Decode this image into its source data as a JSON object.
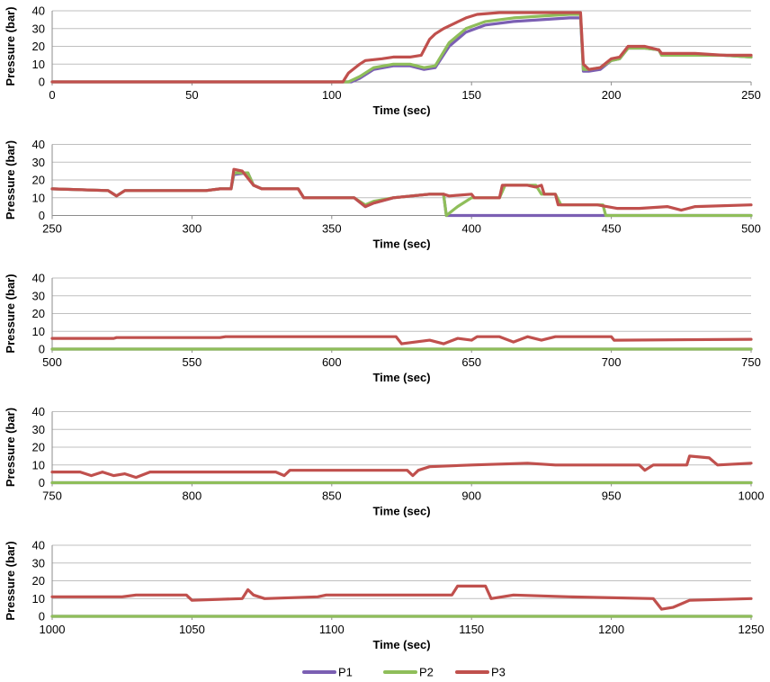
{
  "colors": {
    "P1": "#7b5fb3",
    "P2": "#8fbe5a",
    "P3": "#c0504d",
    "grid": "#bfbfbf"
  },
  "legend": {
    "placement": "bottom",
    "items": [
      "P1",
      "P2",
      "P3"
    ]
  },
  "chart_data": [
    {
      "type": "line",
      "xlabel": "Time (sec)",
      "ylabel": "Pressure (bar)",
      "xlim": [
        0,
        250
      ],
      "ylim": [
        0,
        40
      ],
      "xticks": [
        0,
        50,
        100,
        150,
        200,
        250
      ],
      "yticks": [
        0,
        10,
        20,
        30,
        40
      ],
      "grid": true,
      "series": [
        {
          "name": "P1",
          "x": [
            0,
            107,
            110,
            115,
            122,
            128,
            133,
            137,
            142,
            148,
            155,
            165,
            175,
            185,
            188,
            189,
            190,
            192,
            196,
            200,
            203,
            206,
            212,
            217,
            218,
            230,
            240,
            250
          ],
          "y": [
            0,
            0,
            2,
            7,
            9,
            9,
            7,
            8,
            20,
            28,
            32,
            34,
            35,
            36,
            36,
            36,
            6,
            6,
            7,
            12,
            13,
            19,
            19,
            18,
            15,
            15,
            15,
            14
          ]
        },
        {
          "name": "P2",
          "x": [
            0,
            106,
            110,
            115,
            122,
            128,
            133,
            137,
            142,
            148,
            155,
            165,
            175,
            185,
            188,
            189,
            190,
            192,
            196,
            200,
            203,
            206,
            212,
            217,
            218,
            230,
            240,
            250
          ],
          "y": [
            0,
            0,
            3,
            8,
            10,
            10,
            8,
            9,
            22,
            30,
            34,
            36,
            37,
            38,
            38,
            38,
            7,
            7,
            8,
            12,
            13,
            19,
            19,
            18,
            15,
            15,
            15,
            14
          ]
        },
        {
          "name": "P3",
          "x": [
            0,
            104,
            106,
            110,
            112,
            118,
            122,
            128,
            132,
            135,
            137,
            140,
            144,
            148,
            152,
            160,
            170,
            180,
            188,
            189,
            190,
            192,
            196,
            200,
            203,
            206,
            212,
            217,
            218,
            230,
            240,
            250
          ],
          "y": [
            0,
            0,
            5,
            10,
            12,
            13,
            14,
            14,
            15,
            24,
            27,
            30,
            33,
            36,
            38,
            39,
            39,
            39,
            39,
            39,
            10,
            7,
            8,
            13,
            14,
            20,
            20,
            18,
            16,
            16,
            15,
            15
          ]
        }
      ]
    },
    {
      "type": "line",
      "xlabel": "Time (sec)",
      "ylabel": "Pressure (bar)",
      "xlim": [
        250,
        500
      ],
      "ylim": [
        0,
        40
      ],
      "xticks": [
        250,
        300,
        350,
        400,
        450,
        500
      ],
      "yticks": [
        0,
        10,
        20,
        30,
        40
      ],
      "grid": true,
      "series": [
        {
          "name": "P1",
          "x": [
            250,
            270,
            273,
            276,
            305,
            310,
            314,
            315,
            320,
            322,
            325,
            338,
            340,
            358,
            362,
            365,
            372,
            385,
            390,
            391,
            500
          ],
          "y": [
            15,
            14,
            11,
            14,
            14,
            15,
            15,
            23,
            24,
            17,
            15,
            15,
            10,
            10,
            5,
            7,
            10,
            12,
            12,
            0,
            0
          ]
        },
        {
          "name": "P2",
          "x": [
            250,
            270,
            273,
            276,
            305,
            310,
            314,
            315,
            320,
            322,
            325,
            338,
            340,
            358,
            362,
            365,
            372,
            385,
            390,
            391,
            395,
            400,
            410,
            412,
            420,
            423,
            425,
            430,
            432,
            447,
            448,
            500
          ],
          "y": [
            15,
            14,
            11,
            14,
            14,
            15,
            15,
            24,
            24,
            17,
            15,
            15,
            10,
            10,
            6,
            8,
            10,
            12,
            12,
            0,
            5,
            10,
            10,
            17,
            17,
            17,
            12,
            12,
            6,
            6,
            0,
            0
          ]
        },
        {
          "name": "P3",
          "x": [
            250,
            270,
            273,
            276,
            305,
            310,
            314,
            315,
            318,
            322,
            325,
            338,
            340,
            358,
            362,
            365,
            372,
            385,
            390,
            392,
            400,
            401,
            410,
            411,
            420,
            423,
            425,
            426,
            430,
            431,
            445,
            452,
            460,
            470,
            475,
            480,
            500
          ],
          "y": [
            15,
            14,
            11,
            14,
            14,
            15,
            15,
            26,
            25,
            17,
            15,
            15,
            10,
            10,
            5,
            7,
            10,
            12,
            12,
            11,
            12,
            10,
            10,
            17,
            17,
            16,
            17,
            12,
            12,
            6,
            6,
            4,
            4,
            5,
            3,
            5,
            6
          ]
        }
      ]
    },
    {
      "type": "line",
      "xlabel": "Time (sec)",
      "ylabel": "Pressure (bar)",
      "xlim": [
        500,
        750
      ],
      "ylim": [
        0,
        40
      ],
      "xticks": [
        500,
        550,
        600,
        650,
        700,
        750
      ],
      "yticks": [
        0,
        10,
        20,
        30,
        40
      ],
      "grid": true,
      "series": [
        {
          "name": "P1",
          "x": [
            500,
            750
          ],
          "y": [
            0,
            0
          ]
        },
        {
          "name": "P2",
          "x": [
            500,
            750
          ],
          "y": [
            0,
            0
          ]
        },
        {
          "name": "P3",
          "x": [
            500,
            522,
            523,
            560,
            562,
            600,
            623,
            625,
            630,
            635,
            640,
            645,
            650,
            652,
            660,
            665,
            670,
            675,
            680,
            700,
            701,
            750
          ],
          "y": [
            6,
            6,
            6.5,
            6.5,
            7,
            7,
            7,
            3,
            4,
            5,
            3,
            6,
            5,
            7,
            7,
            4,
            7,
            5,
            7,
            7,
            5,
            5.5
          ]
        }
      ]
    },
    {
      "type": "line",
      "xlabel": "Time (sec)",
      "ylabel": "Pressure (bar)",
      "xlim": [
        750,
        1000
      ],
      "ylim": [
        0,
        40
      ],
      "xticks": [
        750,
        800,
        850,
        900,
        950,
        1000
      ],
      "yticks": [
        0,
        10,
        20,
        30,
        40
      ],
      "grid": true,
      "series": [
        {
          "name": "P1",
          "x": [
            750,
            1000
          ],
          "y": [
            0,
            0
          ]
        },
        {
          "name": "P2",
          "x": [
            750,
            1000
          ],
          "y": [
            0,
            0
          ]
        },
        {
          "name": "P3",
          "x": [
            750,
            760,
            764,
            768,
            772,
            776,
            780,
            785,
            830,
            833,
            835,
            877,
            879,
            881,
            885,
            900,
            920,
            930,
            960,
            962,
            965,
            977,
            978,
            985,
            988,
            1000
          ],
          "y": [
            6,
            6,
            4,
            6,
            4,
            5,
            3,
            6,
            6,
            4,
            7,
            7,
            4,
            7,
            9,
            10,
            11,
            10,
            10,
            7,
            10,
            10,
            15,
            14,
            10,
            11
          ]
        }
      ]
    },
    {
      "type": "line",
      "xlabel": "Time (sec)",
      "ylabel": "Pressure (bar)",
      "xlim": [
        1000,
        1250
      ],
      "ylim": [
        0,
        40
      ],
      "xticks": [
        1000,
        1050,
        1100,
        1150,
        1200,
        1250
      ],
      "yticks": [
        0,
        10,
        20,
        30,
        40
      ],
      "grid": true,
      "series": [
        {
          "name": "P1",
          "x": [
            1000,
            1250
          ],
          "y": [
            0,
            0
          ]
        },
        {
          "name": "P2",
          "x": [
            1000,
            1250
          ],
          "y": [
            0,
            0
          ]
        },
        {
          "name": "P3",
          "x": [
            1000,
            1025,
            1030,
            1048,
            1050,
            1068,
            1070,
            1072,
            1076,
            1095,
            1098,
            1143,
            1145,
            1155,
            1157,
            1165,
            1185,
            1215,
            1218,
            1222,
            1228,
            1250
          ],
          "y": [
            11,
            11,
            12,
            12,
            9,
            10,
            15,
            12,
            10,
            11,
            12,
            12,
            17,
            17,
            10,
            12,
            11,
            10,
            4,
            5,
            9,
            10
          ]
        }
      ]
    }
  ]
}
